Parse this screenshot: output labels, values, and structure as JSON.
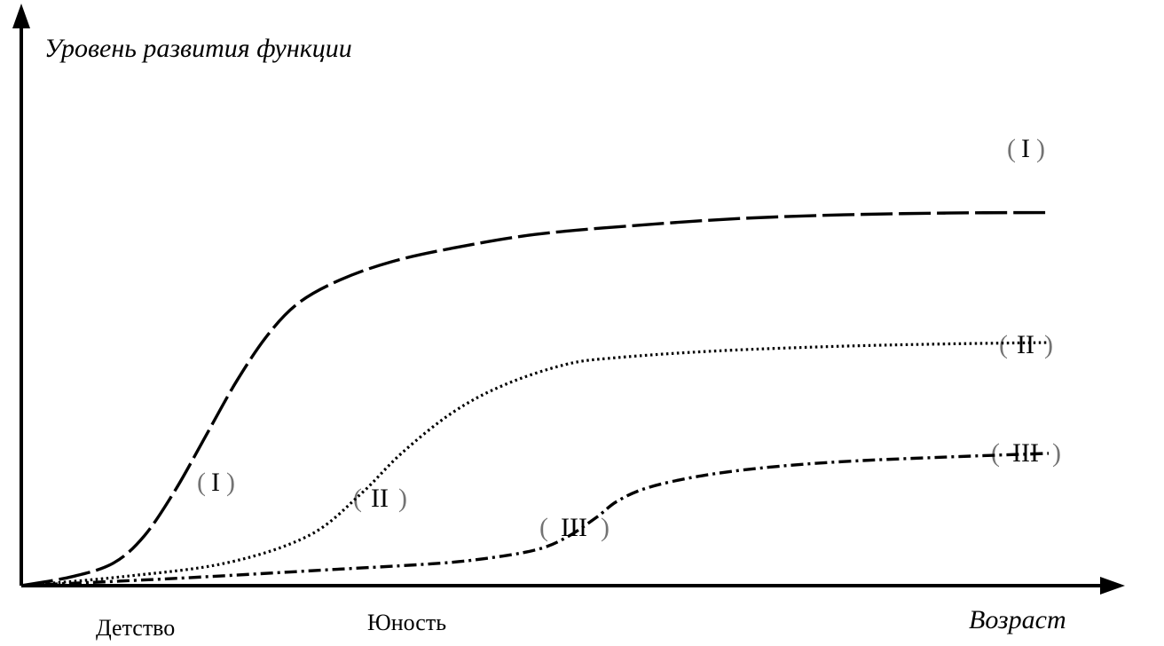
{
  "chart_data": {
    "type": "line",
    "ylabel": "Уровень развития функции",
    "xlabel": "Возраст",
    "x_ticks": [
      "Детство",
      "Юность"
    ],
    "grid": false,
    "series": [
      {
        "name": "I",
        "style": "dashed",
        "points": [
          [
            0,
            0
          ],
          [
            5,
            2
          ],
          [
            9,
            5
          ],
          [
            12,
            11
          ],
          [
            15,
            21
          ],
          [
            18,
            33
          ],
          [
            21,
            45
          ],
          [
            24,
            55
          ],
          [
            27,
            62
          ],
          [
            31,
            67
          ],
          [
            36,
            71
          ],
          [
            42,
            74
          ],
          [
            50,
            77
          ],
          [
            60,
            79
          ],
          [
            70,
            80.5
          ],
          [
            80,
            81.3
          ],
          [
            90,
            81.7
          ],
          [
            100,
            81.8
          ]
        ]
      },
      {
        "name": "II",
        "style": "dotted",
        "points": [
          [
            0,
            0
          ],
          [
            10,
            2
          ],
          [
            20,
            5
          ],
          [
            28,
            11
          ],
          [
            33,
            20
          ],
          [
            37,
            29
          ],
          [
            42,
            38
          ],
          [
            47,
            44
          ],
          [
            53,
            48.5
          ],
          [
            58,
            50
          ],
          [
            68,
            51.5
          ],
          [
            80,
            52.5
          ],
          [
            90,
            53
          ],
          [
            100,
            53.3
          ]
        ]
      },
      {
        "name": "III",
        "style": "dashdot",
        "points": [
          [
            0,
            0
          ],
          [
            15,
            1.6
          ],
          [
            30,
            3.5
          ],
          [
            40,
            4.8
          ],
          [
            45,
            5.9
          ],
          [
            50,
            7.8
          ],
          [
            53,
            10.5
          ],
          [
            56,
            15
          ],
          [
            58,
            18.5
          ],
          [
            61,
            21.5
          ],
          [
            66,
            24
          ],
          [
            72,
            25.8
          ],
          [
            80,
            27.2
          ],
          [
            90,
            28.2
          ],
          [
            100,
            29
          ]
        ]
      }
    ],
    "labels": {
      "left": [
        {
          "series": "I",
          "text": "I"
        },
        {
          "series": "II",
          "text": "II"
        },
        {
          "series": "III",
          "text": "III"
        }
      ],
      "right": [
        {
          "series": "I",
          "text": "I"
        },
        {
          "series": "II",
          "text": "II"
        },
        {
          "series": "III",
          "text": "III"
        }
      ]
    }
  }
}
